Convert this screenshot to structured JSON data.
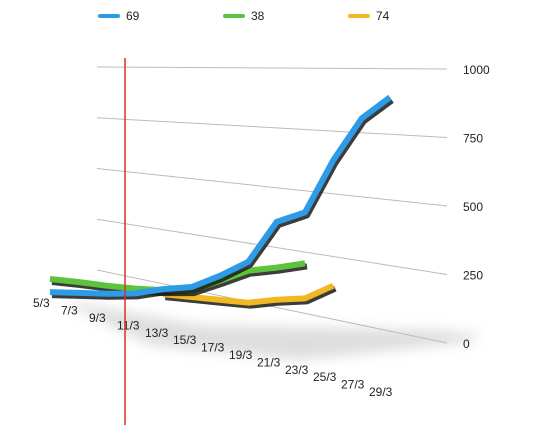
{
  "chart_data": {
    "type": "line",
    "categories": [
      "5/3",
      "7/3",
      "9/3",
      "11/3",
      "13/3",
      "15/3",
      "17/3",
      "19/3",
      "21/3",
      "23/3",
      "25/3",
      "27/3",
      "29/3"
    ],
    "series": [
      {
        "name": "69",
        "color": "#2d9be6",
        "values": [
          15,
          25,
          34,
          48,
          80,
          100,
          159,
          227,
          400,
          441,
          650,
          809,
          882
        ]
      },
      {
        "name": "38",
        "color": "#5cc43a",
        "values": [
          83,
          80,
          73,
          71,
          75,
          86,
          137,
          189,
          209,
          233,
          null,
          null,
          null
        ]
      },
      {
        "name": "74",
        "color": "#f2b824",
        "values": [
          null,
          null,
          null,
          null,
          56,
          55,
          53,
          52,
          75,
          90,
          150,
          null,
          null
        ]
      }
    ],
    "ylim": [
      0,
      1000
    ],
    "yticks": [
      0,
      250,
      500,
      750,
      1000
    ],
    "grid": true
  }
}
